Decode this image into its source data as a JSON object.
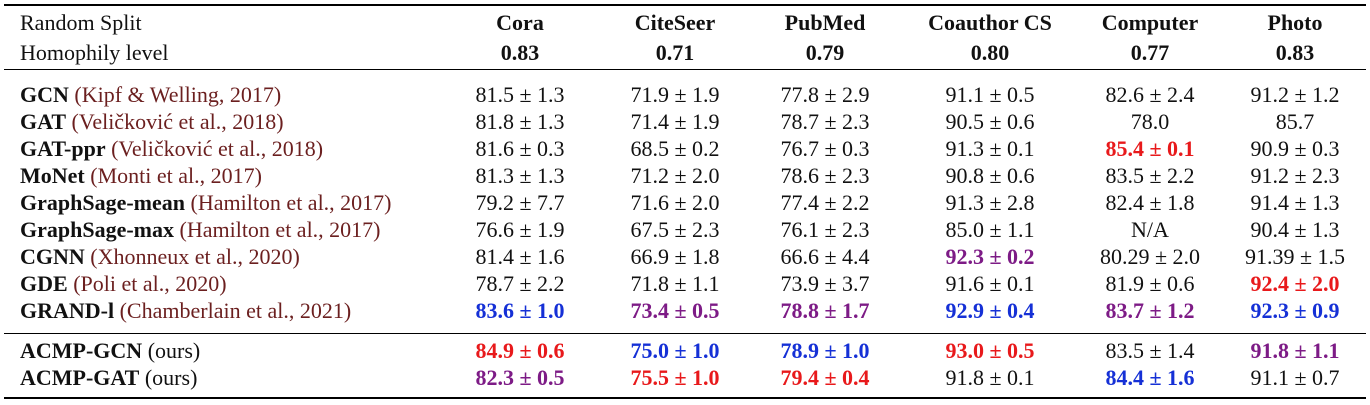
{
  "table": {
    "header": {
      "row1_label": "Random Split",
      "row2_label": "Homophily level",
      "datasets": [
        {
          "name": "Cora",
          "homophily": "0.83"
        },
        {
          "name": "CiteSeer",
          "homophily": "0.71"
        },
        {
          "name": "PubMed",
          "homophily": "0.79"
        },
        {
          "name": "Coauthor CS",
          "homophily": "0.80"
        },
        {
          "name": "Computer",
          "homophily": "0.77"
        },
        {
          "name": "Photo",
          "homophily": "0.83"
        }
      ]
    },
    "baselines": [
      {
        "model": "GCN",
        "cite": "(Kipf & Welling, 2017)",
        "values": [
          "81.5 ± 1.3",
          "71.9 ± 1.9",
          "77.8 ± 2.9",
          "91.1 ± 0.5",
          "82.6 ± 2.4",
          "91.2 ± 1.2"
        ],
        "highlight": [
          "",
          "",
          "",
          "",
          "",
          ""
        ]
      },
      {
        "model": "GAT",
        "cite": "(Veličković et al., 2018)",
        "values": [
          "81.8 ± 1.3",
          "71.4 ± 1.9",
          "78.7 ± 2.3",
          "90.5 ± 0.6",
          "78.0",
          "85.7"
        ],
        "highlight": [
          "",
          "",
          "",
          "",
          "",
          ""
        ]
      },
      {
        "model": "GAT-ppr",
        "cite": "(Veličković et al., 2018)",
        "values": [
          "81.6 ± 0.3",
          "68.5 ± 0.2",
          "76.7 ± 0.3",
          "91.3 ± 0.1",
          "85.4 ± 0.1",
          "90.9 ± 0.3"
        ],
        "highlight": [
          "",
          "",
          "",
          "",
          "red",
          ""
        ]
      },
      {
        "model": "MoNet",
        "cite": "(Monti et al., 2017)",
        "values": [
          "81.3 ± 1.3",
          "71.2 ± 2.0",
          "78.6 ± 2.3",
          "90.8 ± 0.6",
          "83.5 ± 2.2",
          "91.2 ± 2.3"
        ],
        "highlight": [
          "",
          "",
          "",
          "",
          "",
          ""
        ]
      },
      {
        "model": "GraphSage-mean",
        "cite": "(Hamilton et al., 2017)",
        "values": [
          "79.2 ± 7.7",
          "71.6 ± 2.0",
          "77.4 ± 2.2",
          "91.3 ± 2.8",
          "82.4 ± 1.8",
          "91.4 ± 1.3"
        ],
        "highlight": [
          "",
          "",
          "",
          "",
          "",
          ""
        ]
      },
      {
        "model": "GraphSage-max",
        "cite": "(Hamilton et al., 2017)",
        "values": [
          "76.6 ± 1.9",
          "67.5 ± 2.3",
          "76.1 ± 2.3",
          "85.0 ± 1.1",
          "N/A",
          "90.4 ± 1.3"
        ],
        "highlight": [
          "",
          "",
          "",
          "",
          "",
          ""
        ]
      },
      {
        "model": "CGNN",
        "cite": "(Xhonneux et al., 2020)",
        "values": [
          "81.4 ± 1.6",
          "66.9 ± 1.8",
          "66.6 ± 4.4",
          "92.3 ± 0.2",
          "80.29 ± 2.0",
          "91.39 ± 1.5"
        ],
        "highlight": [
          "",
          "",
          "",
          "purple",
          "",
          ""
        ]
      },
      {
        "model": "GDE",
        "cite": "(Poli et al., 2020)",
        "values": [
          "78.7 ± 2.2",
          "71.8 ± 1.1",
          "73.9 ± 3.7",
          "91.6 ± 0.1",
          "81.9 ± 0.6",
          "92.4 ± 2.0"
        ],
        "highlight": [
          "",
          "",
          "",
          "",
          "",
          "red"
        ]
      },
      {
        "model": "GRAND-l",
        "cite": "(Chamberlain et al., 2021)",
        "values": [
          "83.6 ± 1.0",
          "73.4 ± 0.5",
          "78.8 ± 1.7",
          "92.9 ± 0.4",
          "83.7 ± 1.2",
          "92.3 ± 0.9"
        ],
        "highlight": [
          "blue",
          "purple",
          "purple",
          "blue",
          "purple",
          "blue"
        ]
      }
    ],
    "ours": [
      {
        "model": "ACMP-GCN",
        "cite": "(ours)",
        "values": [
          "84.9 ± 0.6",
          "75.0 ± 1.0",
          "78.9 ± 1.0",
          "93.0 ± 0.5",
          "83.5 ± 1.4",
          "91.8 ± 1.1"
        ],
        "highlight": [
          "red",
          "blue",
          "blue",
          "red",
          "",
          "purple"
        ]
      },
      {
        "model": "ACMP-GAT",
        "cite": "(ours)",
        "values": [
          "82.3 ± 0.5",
          "75.5 ± 1.0",
          "79.4 ± 0.4",
          "91.8 ± 0.1",
          "84.4 ± 1.6",
          "91.1 ± 0.7"
        ],
        "highlight": [
          "purple",
          "red",
          "red",
          "",
          "blue",
          ""
        ]
      }
    ],
    "colors": {
      "red": "#e8191b",
      "blue": "#1530d6",
      "purple": "#7d1b86",
      "cite": "#6b1f1f"
    }
  }
}
